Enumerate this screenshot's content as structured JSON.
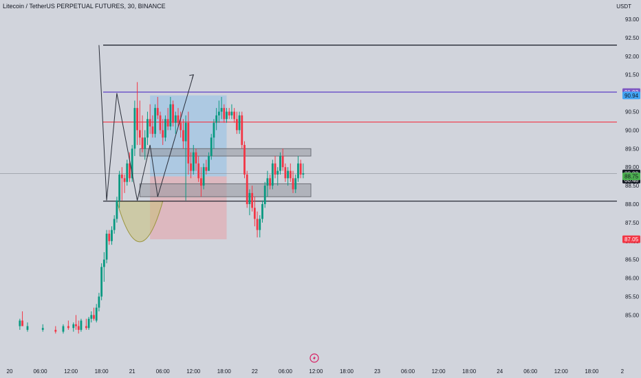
{
  "header": {
    "title": "Litecoin / TetherUS PERPETUAL FUTURES, 30, BINANCE",
    "currency": "USDT"
  },
  "chart_data": {
    "type": "candlestick",
    "symbol": "LTCUSDT.P",
    "interval": "30",
    "ylim": [
      84.6,
      93.3
    ],
    "y_ticks": [
      "93.00",
      "92.50",
      "92.00",
      "91.50",
      "91.00",
      "90.50",
      "90.00",
      "89.50",
      "89.00",
      "88.50",
      "88.00",
      "87.50",
      "87.00",
      "86.50",
      "86.00",
      "85.50",
      "85.00"
    ],
    "x_ticks": [
      {
        "label": "20",
        "t": 0
      },
      {
        "label": "06:00",
        "t": 12
      },
      {
        "label": "12:00",
        "t": 24
      },
      {
        "label": "18:00",
        "t": 36
      },
      {
        "label": "21",
        "t": 48
      },
      {
        "label": "06:00",
        "t": 60
      },
      {
        "label": "12:00",
        "t": 72
      },
      {
        "label": "18:00",
        "t": 84
      },
      {
        "label": "22",
        "t": 96
      },
      {
        "label": "06:00",
        "t": 108
      },
      {
        "label": "12:00",
        "t": 120
      },
      {
        "label": "18:00",
        "t": 132
      },
      {
        "label": "23",
        "t": 144
      },
      {
        "label": "06:00",
        "t": 156
      },
      {
        "label": "12:00",
        "t": 168
      },
      {
        "label": "18:00",
        "t": 180
      },
      {
        "label": "24",
        "t": 192
      },
      {
        "label": "06:00",
        "t": 204
      },
      {
        "label": "12:00",
        "t": 216
      },
      {
        "label": "18:00",
        "t": 228
      },
      {
        "label": "2",
        "t": 240
      }
    ],
    "price_labels": [
      {
        "value": 91.03,
        "text": "91.03",
        "bg": "#7e57c2",
        "fg": "#ffffff"
      },
      {
        "value": 90.94,
        "text": "90.94",
        "bg": "#42a5f5",
        "fg": "#131722"
      },
      {
        "value": 88.83,
        "text": "88.83",
        "sub": "00:48",
        "bg": "#131722",
        "fg": "#ffffff"
      },
      {
        "value": 88.75,
        "text": "88.75",
        "bg": "#4caf50",
        "fg": "#131722"
      },
      {
        "value": 87.05,
        "text": "87.05",
        "bg": "#f23645",
        "fg": "#ffffff"
      }
    ],
    "candles": [
      [
        4,
        84.7,
        84.9,
        84.6,
        84.85
      ],
      [
        5,
        84.85,
        85.1,
        84.75,
        84.7
      ],
      [
        7,
        84.6,
        84.8,
        84.55,
        84.7
      ],
      [
        13,
        84.6,
        84.75,
        84.55,
        84.65
      ],
      [
        18,
        84.6,
        84.7,
        84.5,
        84.55
      ],
      [
        21,
        84.55,
        84.75,
        84.5,
        84.7
      ],
      [
        23,
        84.7,
        84.85,
        84.6,
        84.65
      ],
      [
        25,
        84.65,
        84.8,
        84.55,
        84.75
      ],
      [
        26,
        84.75,
        85.0,
        84.6,
        84.7
      ],
      [
        27,
        84.7,
        84.85,
        84.5,
        84.6
      ],
      [
        28,
        84.6,
        84.9,
        84.55,
        84.85
      ],
      [
        30,
        84.7,
        84.9,
        84.6,
        84.65
      ],
      [
        31,
        84.65,
        84.95,
        84.6,
        84.9
      ],
      [
        32,
        84.9,
        85.1,
        84.8,
        85.0
      ],
      [
        33,
        85.0,
        85.2,
        84.85,
        84.9
      ],
      [
        34,
        84.85,
        85.3,
        84.8,
        85.2
      ],
      [
        35,
        85.2,
        85.6,
        85.1,
        85.5
      ],
      [
        36,
        85.5,
        86.4,
        85.4,
        86.3
      ],
      [
        37,
        86.3,
        86.7,
        85.9,
        86.5
      ],
      [
        38,
        86.5,
        87.3,
        86.4,
        87.2
      ],
      [
        39,
        87.2,
        87.3,
        86.9,
        87.0
      ],
      [
        40,
        87.0,
        87.4,
        86.9,
        87.3
      ],
      [
        41,
        87.3,
        87.7,
        87.2,
        87.6
      ],
      [
        42,
        87.6,
        88.2,
        87.5,
        88.1
      ],
      [
        43,
        88.1,
        88.9,
        87.9,
        88.8
      ],
      [
        44,
        88.8,
        89.0,
        88.1,
        88.7
      ],
      [
        45,
        88.7,
        88.8,
        88.3,
        88.6
      ],
      [
        46,
        88.6,
        89.2,
        88.5,
        89.1
      ],
      [
        47,
        89.1,
        89.4,
        88.6,
        88.7
      ],
      [
        48,
        88.7,
        89.6,
        88.6,
        89.5
      ],
      [
        49,
        89.5,
        90.8,
        89.3,
        90.6
      ],
      [
        50,
        90.6,
        91.3,
        89.6,
        90.0
      ],
      [
        51,
        90.0,
        90.8,
        89.6,
        89.8
      ],
      [
        52,
        89.8,
        90.4,
        89.4,
        89.5
      ],
      [
        53,
        89.5,
        90.0,
        89.2,
        89.8
      ],
      [
        54,
        89.8,
        90.5,
        89.6,
        90.3
      ],
      [
        55,
        90.3,
        90.7,
        89.9,
        90.1
      ],
      [
        56,
        90.1,
        90.4,
        89.8,
        89.9
      ],
      [
        57,
        89.9,
        90.7,
        89.8,
        90.6
      ],
      [
        58,
        90.6,
        90.9,
        90.3,
        90.4
      ],
      [
        59,
        90.4,
        90.5,
        89.9,
        90.0
      ],
      [
        60,
        90.0,
        90.3,
        89.6,
        89.8
      ],
      [
        61,
        89.8,
        90.4,
        89.7,
        90.3
      ],
      [
        62,
        90.3,
        90.6,
        90.0,
        90.1
      ],
      [
        63,
        90.1,
        90.9,
        90.0,
        90.7
      ],
      [
        64,
        90.7,
        90.8,
        90.1,
        90.2
      ],
      [
        65,
        90.2,
        90.5,
        89.9,
        90.4
      ],
      [
        66,
        90.4,
        90.6,
        90.1,
        90.2
      ],
      [
        67,
        90.2,
        90.5,
        89.8,
        90.0
      ],
      [
        68,
        90.0,
        90.3,
        89.5,
        89.7
      ],
      [
        69,
        89.7,
        90.4,
        88.1,
        90.2
      ],
      [
        70,
        90.2,
        90.5,
        88.8,
        89.1
      ],
      [
        71,
        89.1,
        89.4,
        88.7,
        88.9
      ],
      [
        72,
        88.9,
        89.6,
        88.8,
        89.4
      ],
      [
        73,
        89.4,
        89.5,
        88.9,
        89.1
      ],
      [
        74,
        89.1,
        89.3,
        88.6,
        88.7
      ],
      [
        75,
        88.7,
        89.0,
        88.2,
        88.5
      ],
      [
        76,
        88.5,
        89.1,
        88.4,
        89.0
      ],
      [
        77,
        89.0,
        89.2,
        88.8,
        88.9
      ],
      [
        78,
        88.9,
        89.4,
        88.9,
        89.3
      ],
      [
        79,
        89.3,
        89.9,
        89.2,
        89.8
      ],
      [
        80,
        89.8,
        90.3,
        89.5,
        90.2
      ],
      [
        81,
        90.2,
        90.6,
        90.0,
        90.4
      ],
      [
        82,
        90.4,
        90.8,
        90.2,
        90.5
      ],
      [
        83,
        90.5,
        90.9,
        90.3,
        90.6
      ],
      [
        84,
        90.6,
        90.7,
        90.2,
        90.3
      ],
      [
        85,
        90.3,
        90.6,
        90.2,
        90.5
      ],
      [
        86,
        90.5,
        90.6,
        90.3,
        90.4
      ],
      [
        87,
        90.4,
        90.7,
        90.3,
        90.5
      ],
      [
        88,
        90.5,
        90.6,
        90.2,
        90.3
      ],
      [
        89,
        90.3,
        90.5,
        89.9,
        90.0
      ],
      [
        90,
        90.0,
        90.5,
        89.9,
        90.4
      ],
      [
        91,
        90.4,
        90.5,
        89.5,
        89.6
      ],
      [
        92,
        89.6,
        89.7,
        88.7,
        88.8
      ],
      [
        93,
        88.8,
        88.9,
        87.9,
        88.0
      ],
      [
        94,
        88.0,
        88.4,
        87.7,
        88.3
      ],
      [
        95,
        88.3,
        88.5,
        87.8,
        87.9
      ],
      [
        96,
        87.9,
        88.2,
        87.4,
        87.6
      ],
      [
        97,
        87.6,
        87.8,
        87.1,
        87.3
      ],
      [
        98,
        87.3,
        87.7,
        87.1,
        87.6
      ],
      [
        99,
        87.6,
        88.1,
        87.5,
        88.0
      ],
      [
        100,
        88.0,
        88.6,
        87.9,
        88.5
      ],
      [
        101,
        88.5,
        88.9,
        88.2,
        88.7
      ],
      [
        102,
        88.7,
        88.8,
        88.4,
        88.5
      ],
      [
        103,
        88.5,
        89.2,
        88.4,
        89.1
      ],
      [
        104,
        89.1,
        89.3,
        88.7,
        88.8
      ],
      [
        105,
        88.8,
        89.0,
        88.5,
        88.9
      ],
      [
        106,
        88.9,
        89.4,
        88.8,
        89.3
      ],
      [
        107,
        89.3,
        89.5,
        88.9,
        89.0
      ],
      [
        108,
        89.0,
        89.1,
        88.6,
        88.7
      ],
      [
        109,
        88.7,
        89.0,
        88.5,
        88.9
      ],
      [
        110,
        88.9,
        89.1,
        88.6,
        88.7
      ],
      [
        111,
        88.7,
        88.9,
        88.3,
        88.4
      ],
      [
        112,
        88.4,
        88.8,
        88.3,
        88.7
      ],
      [
        113,
        88.7,
        89.3,
        88.6,
        89.1
      ],
      [
        114,
        89.1,
        89.2,
        88.7,
        88.8
      ],
      [
        115,
        88.8,
        89.1,
        88.7,
        88.83
      ]
    ],
    "horizontal_lines": [
      {
        "value": 92.3,
        "color": "#131722"
      },
      {
        "value": 91.03,
        "color": "#5b3cc4"
      },
      {
        "value": 90.22,
        "color": "#f23645"
      },
      {
        "value": 88.08,
        "color": "#131722"
      }
    ],
    "zones": [
      {
        "t0": 51,
        "t1": 118,
        "top": 89.5,
        "bottom": 89.3
      },
      {
        "t0": 51,
        "t1": 118,
        "top": 88.55,
        "bottom": 88.2
      }
    ],
    "position": {
      "t0": 55,
      "t1": 85,
      "target": 90.94,
      "entry": 88.75,
      "stop": 87.05
    },
    "pattern_path": [
      [
        35,
        92.3
      ],
      [
        38,
        88.1
      ],
      [
        42,
        91.0
      ],
      [
        50,
        88.1
      ],
      [
        55,
        89.6
      ],
      [
        58,
        88.2
      ],
      [
        72,
        91.5
      ]
    ],
    "cup": {
      "t0": 42,
      "t1": 60,
      "rim": 88.08,
      "bottom": 86.98
    }
  }
}
